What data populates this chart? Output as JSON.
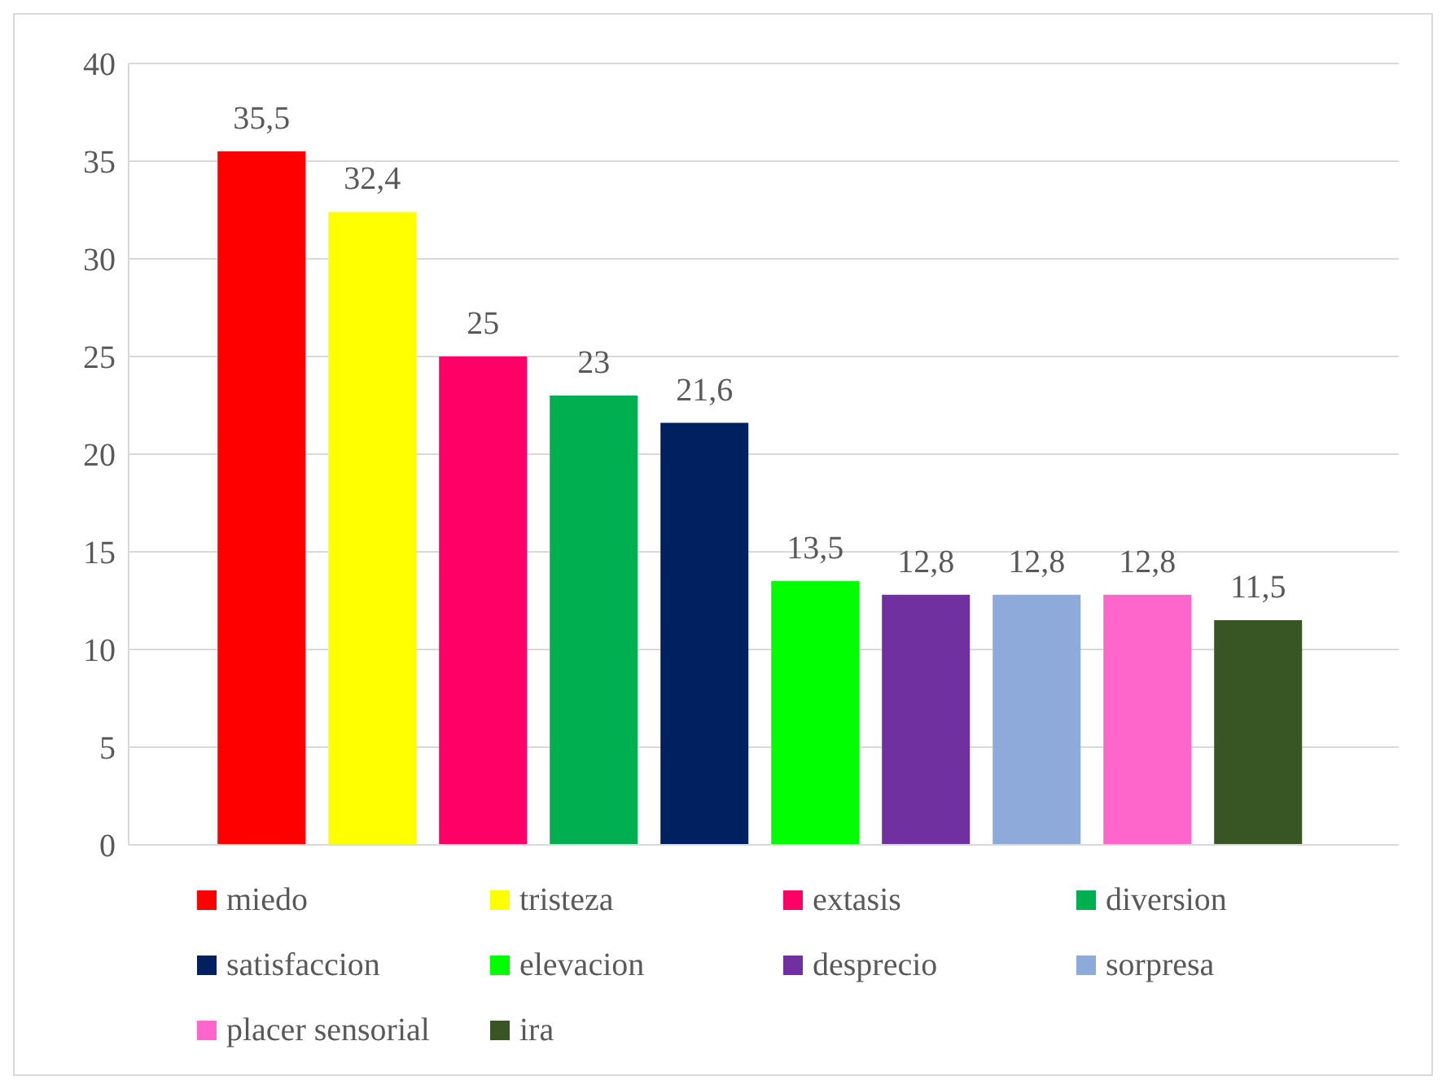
{
  "chart_data": {
    "type": "bar",
    "categories": [
      null
    ],
    "series": [
      {
        "name": "miedo",
        "color": "#ff0000",
        "values": [
          35.5
        ],
        "value_labels": [
          "35,5"
        ]
      },
      {
        "name": "tristeza",
        "color": "#ffff00",
        "values": [
          32.4
        ],
        "value_labels": [
          "32,4"
        ]
      },
      {
        "name": "extasis",
        "color": "#ff0066",
        "values": [
          25
        ],
        "value_labels": [
          "25"
        ]
      },
      {
        "name": "diversion",
        "color": "#00b050",
        "values": [
          23
        ],
        "value_labels": [
          "23"
        ]
      },
      {
        "name": "satisfaccion",
        "color": "#002060",
        "values": [
          21.6
        ],
        "value_labels": [
          "21,6"
        ]
      },
      {
        "name": "elevacion",
        "color": "#00ff00",
        "values": [
          13.5
        ],
        "value_labels": [
          "13,5"
        ]
      },
      {
        "name": "desprecio",
        "color": "#7030a0",
        "values": [
          12.8
        ],
        "value_labels": [
          "12,8"
        ]
      },
      {
        "name": "sorpresa",
        "color": "#8eaadb",
        "values": [
          12.8
        ],
        "value_labels": [
          "12,8"
        ]
      },
      {
        "name": "placer sensorial",
        "color": "#ff66cc",
        "values": [
          12.8
        ],
        "value_labels": [
          "12,8"
        ]
      },
      {
        "name": "ira",
        "color": "#375623",
        "values": [
          11.5
        ],
        "value_labels": [
          "11,5"
        ]
      }
    ],
    "ylim": [
      0,
      40
    ],
    "yticks": [
      0,
      5,
      10,
      15,
      20,
      25,
      30,
      35,
      40
    ],
    "grid": "y",
    "legend": "bottom"
  }
}
